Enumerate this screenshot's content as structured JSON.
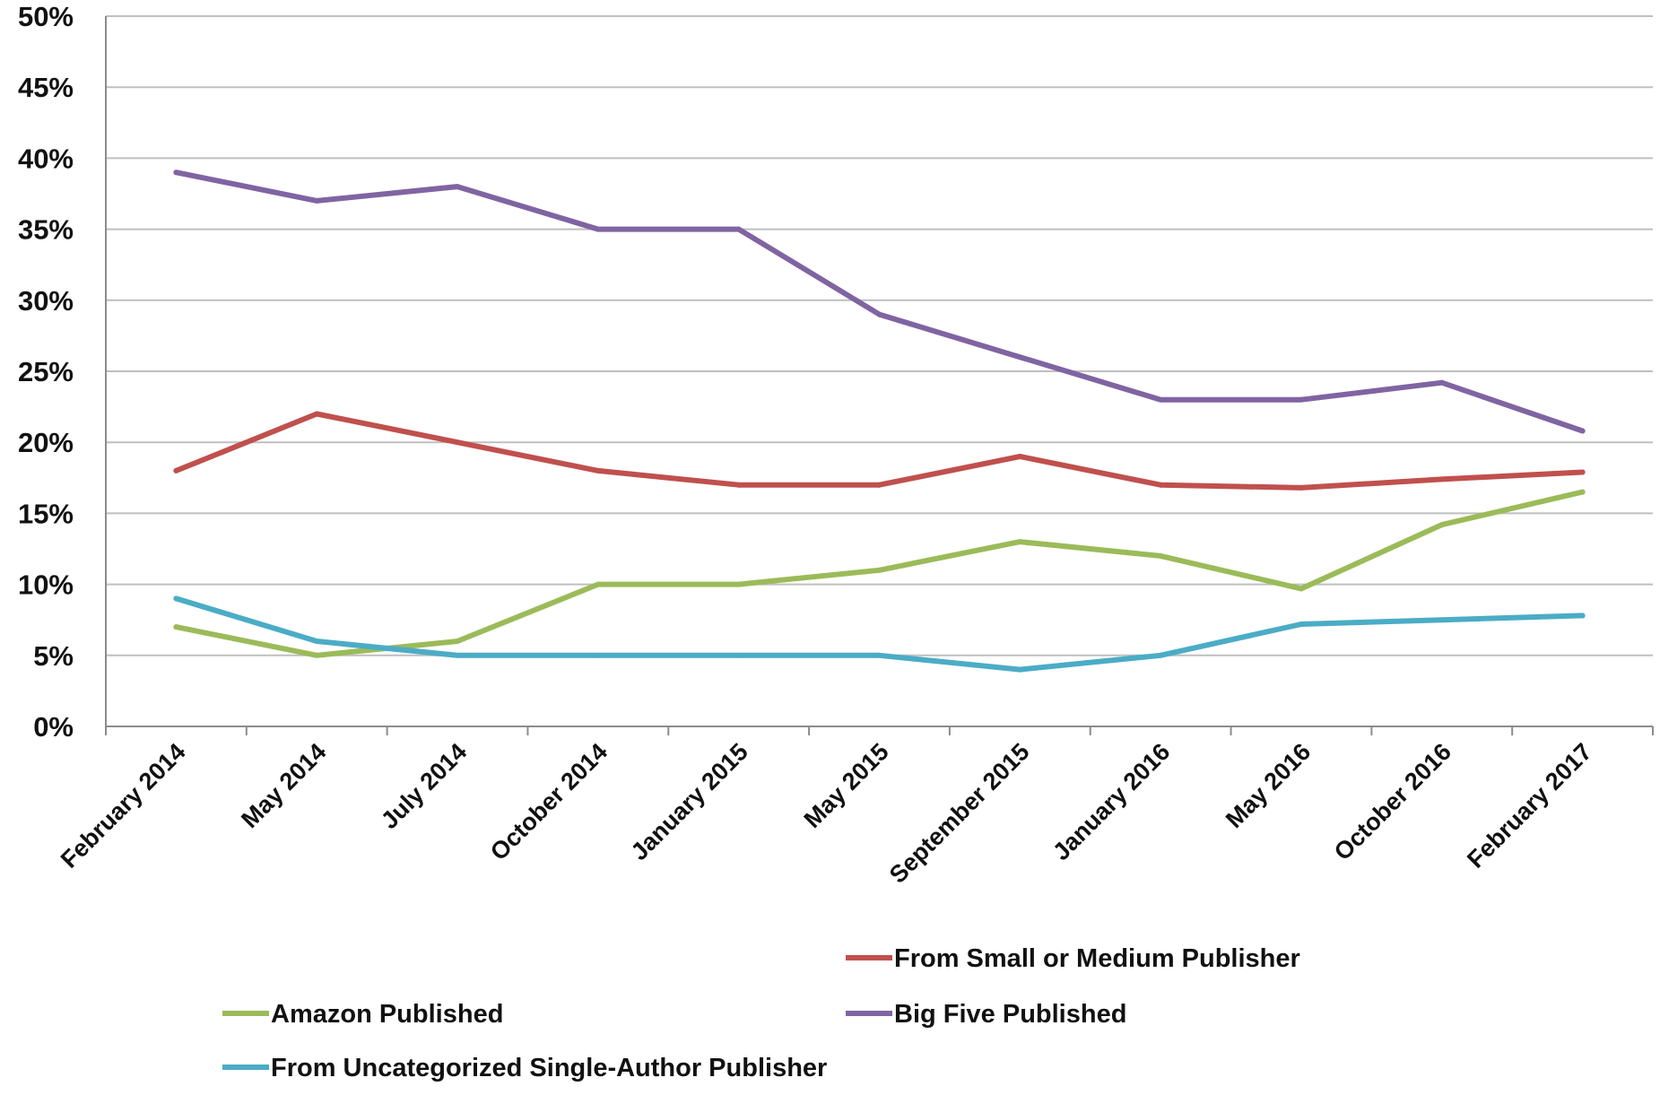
{
  "chart_data": {
    "type": "line",
    "title": "",
    "xlabel": "",
    "ylabel": "",
    "categories": [
      "February 2014",
      "May 2014",
      "July 2014",
      "October 2014",
      "January 2015",
      "May 2015",
      "September 2015",
      "January 2016",
      "May 2016",
      "October 2016",
      "February 2017"
    ],
    "ylim": [
      0,
      50
    ],
    "yticks": [
      "0%",
      "5%",
      "10%",
      "15%",
      "20%",
      "25%",
      "30%",
      "35%",
      "40%",
      "45%",
      "50%"
    ],
    "grid": true,
    "legend_position": "bottom",
    "series": [
      {
        "name": "From Small or Medium Publisher",
        "color": "#c0504d",
        "values": [
          18,
          22,
          20,
          18,
          17,
          17,
          19,
          17,
          16.8,
          17.4,
          17.9
        ]
      },
      {
        "name": "Amazon Published",
        "color": "#9bbb59",
        "values": [
          7,
          5,
          6,
          10,
          10,
          11,
          13,
          12,
          9.7,
          14.2,
          16.5
        ]
      },
      {
        "name": "Big Five Published",
        "color": "#8064a2",
        "values": [
          39,
          37,
          38,
          35,
          35,
          29,
          26,
          23,
          23,
          24.2,
          20.8
        ]
      },
      {
        "name": "From Uncategorized Single-Author Publisher",
        "color": "#4bacc6",
        "values": [
          9,
          6,
          5,
          5,
          5,
          5,
          4,
          5,
          7.2,
          7.5,
          7.8
        ]
      }
    ]
  }
}
